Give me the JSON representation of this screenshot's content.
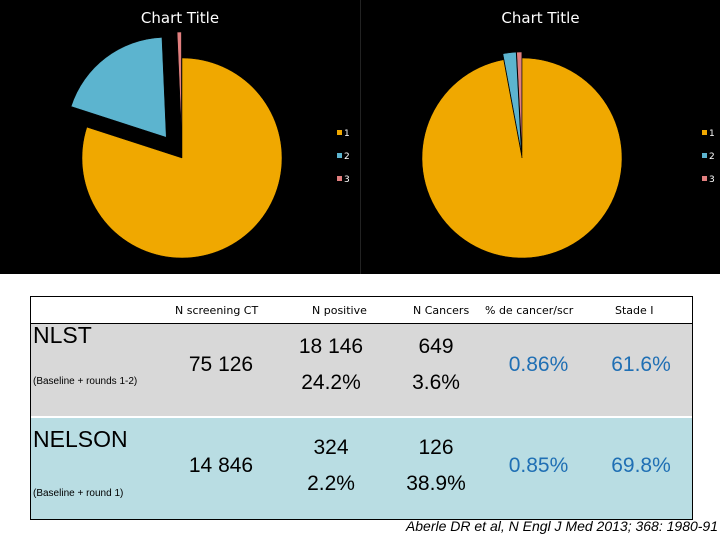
{
  "charts": [
    {
      "title": "Chart Title",
      "legend": [
        "1",
        "2",
        "3"
      ],
      "colors": [
        "#f0a800",
        "#5cb4cf",
        "#e17f7f"
      ]
    },
    {
      "title": "Chart Title",
      "legend": [
        "1",
        "2",
        "3"
      ],
      "colors": [
        "#f0a800",
        "#5cb4cf",
        "#e17f7f"
      ]
    }
  ],
  "chart_data": [
    {
      "type": "pie",
      "title": "Chart Title",
      "legend_placement": "right",
      "exploded": true,
      "series": [
        {
          "categories": [
            "1",
            "2",
            "3"
          ],
          "values": [
            75126,
            18146,
            649
          ]
        }
      ]
    },
    {
      "type": "pie",
      "title": "Chart Title",
      "legend_placement": "right",
      "exploded": true,
      "series": [
        {
          "categories": [
            "1",
            "2",
            "3"
          ],
          "values": [
            14846,
            324,
            126
          ]
        }
      ]
    }
  ],
  "table": {
    "headers": [
      "N screening CT",
      "N positive",
      "N Cancers",
      "% de cancer/scr",
      "Stade I"
    ],
    "rows": [
      {
        "name": "NLST",
        "sub": "(Baseline + rounds 1-2)",
        "screening": "75 126",
        "positive": "18 146",
        "positive_pct": "24.2%",
        "cancers": "649",
        "cancers_pct": "3.6%",
        "cancer_rate": "0.86%",
        "stage1": "61.6%"
      },
      {
        "name": "NELSON",
        "sub": "(Baseline + round 1)",
        "screening": "14 846",
        "positive": "324",
        "positive_pct": "2.2%",
        "cancers": "126",
        "cancers_pct": "38.9%",
        "cancer_rate": "0.85%",
        "stage1": "69.8%"
      }
    ]
  },
  "citation": "Aberle DR et al, N Engl J Med 2013; 368: 1980-91"
}
